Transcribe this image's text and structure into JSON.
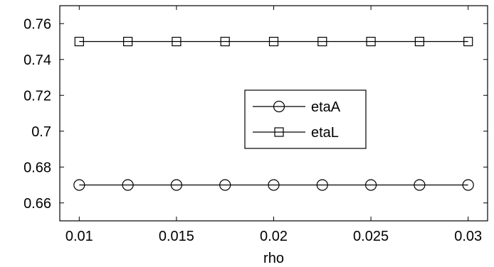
{
  "chart_data": {
    "type": "line",
    "x": [
      0.01,
      0.0125,
      0.015,
      0.0175,
      0.02,
      0.0225,
      0.025,
      0.0275,
      0.03
    ],
    "series": [
      {
        "name": "etaA",
        "marker": "circle",
        "color": "#000000",
        "values": [
          0.67,
          0.67,
          0.67,
          0.67,
          0.67,
          0.67,
          0.67,
          0.67,
          0.67
        ]
      },
      {
        "name": "etaL",
        "marker": "square",
        "color": "#000000",
        "values": [
          0.75,
          0.75,
          0.75,
          0.75,
          0.75,
          0.75,
          0.75,
          0.75,
          0.75
        ]
      }
    ],
    "title": "",
    "xlabel": "rho",
    "ylabel": "",
    "xlim": [
      0.009,
      0.031
    ],
    "ylim": [
      0.65,
      0.77
    ],
    "xticks": [
      0.01,
      0.015,
      0.02,
      0.025,
      0.03
    ],
    "xtick_labels": [
      "0.01",
      "0.015",
      "0.02",
      "0.025",
      "0.03"
    ],
    "yticks": [
      0.66,
      0.68,
      0.7,
      0.72,
      0.74,
      0.76
    ],
    "ytick_labels": [
      "0.66",
      "0.68",
      "0.7",
      "0.72",
      "0.74",
      "0.76"
    ],
    "grid": false,
    "legend_position": "center-right"
  }
}
